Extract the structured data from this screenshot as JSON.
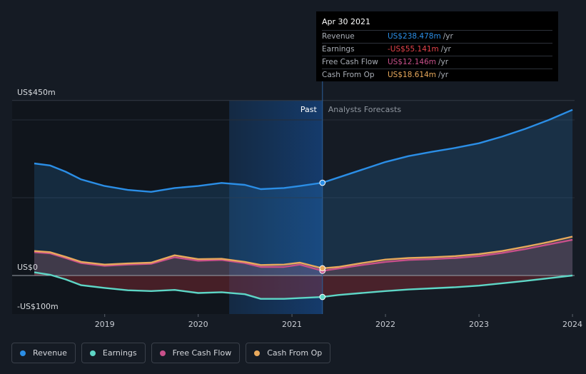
{
  "chart_data": {
    "type": "area",
    "currency_prefix": "US$",
    "y_ticks": [
      {
        "label": "US$450m",
        "value": 450
      },
      {
        "label": "US$0",
        "value": 0
      },
      {
        "label": "-US$100m",
        "value": -100
      }
    ],
    "x_ticks": [
      "2019",
      "2020",
      "2021",
      "2022",
      "2023",
      "2024"
    ],
    "past_label": "Past",
    "forecast_label": "Analysts Forecasts",
    "divider_date": "2021-04-30",
    "highlight_start": "2020-05-01",
    "series": [
      {
        "name": "Revenue",
        "color": "#2b8ee6",
        "points": [
          [
            "2018-04-01",
            288
          ],
          [
            "2018-06-01",
            283
          ],
          [
            "2018-08-01",
            267
          ],
          [
            "2018-10-01",
            247
          ],
          [
            "2019-01-01",
            230
          ],
          [
            "2019-04-01",
            220
          ],
          [
            "2019-07-01",
            215
          ],
          [
            "2019-10-01",
            225
          ],
          [
            "2020-01-01",
            230
          ],
          [
            "2020-04-01",
            238
          ],
          [
            "2020-07-01",
            233
          ],
          [
            "2020-09-01",
            222
          ],
          [
            "2020-12-01",
            225
          ],
          [
            "2021-02-01",
            230
          ],
          [
            "2021-04-30",
            238.478
          ],
          [
            "2021-07-01",
            252
          ],
          [
            "2021-10-01",
            272
          ],
          [
            "2022-01-01",
            292
          ],
          [
            "2022-04-01",
            307
          ],
          [
            "2022-07-01",
            318
          ],
          [
            "2022-10-01",
            328
          ],
          [
            "2023-01-01",
            340
          ],
          [
            "2023-04-01",
            357
          ],
          [
            "2023-07-01",
            377
          ],
          [
            "2023-10-01",
            400
          ],
          [
            "2024-01-01",
            426
          ]
        ]
      },
      {
        "name": "Earnings",
        "color": "#5ed6c6",
        "points": [
          [
            "2018-04-01",
            8
          ],
          [
            "2018-06-01",
            2
          ],
          [
            "2018-08-01",
            -10
          ],
          [
            "2018-10-01",
            -25
          ],
          [
            "2019-01-01",
            -32
          ],
          [
            "2019-04-01",
            -38
          ],
          [
            "2019-07-01",
            -40
          ],
          [
            "2019-10-01",
            -37
          ],
          [
            "2020-01-01",
            -45
          ],
          [
            "2020-04-01",
            -43
          ],
          [
            "2020-07-01",
            -48
          ],
          [
            "2020-09-01",
            -60
          ],
          [
            "2020-12-01",
            -60
          ],
          [
            "2021-02-01",
            -58
          ],
          [
            "2021-04-30",
            -55.141
          ],
          [
            "2021-07-01",
            -50
          ],
          [
            "2021-10-01",
            -45
          ],
          [
            "2022-01-01",
            -40
          ],
          [
            "2022-04-01",
            -36
          ],
          [
            "2022-07-01",
            -33
          ],
          [
            "2022-10-01",
            -30
          ],
          [
            "2023-01-01",
            -26
          ],
          [
            "2023-04-01",
            -20
          ],
          [
            "2023-07-01",
            -14
          ],
          [
            "2023-10-01",
            -7
          ],
          [
            "2024-01-01",
            0
          ]
        ]
      },
      {
        "name": "Free Cash Flow",
        "color": "#c8508a",
        "points": [
          [
            "2018-04-01",
            60
          ],
          [
            "2018-06-01",
            57
          ],
          [
            "2018-08-01",
            45
          ],
          [
            "2018-10-01",
            32
          ],
          [
            "2019-01-01",
            25
          ],
          [
            "2019-04-01",
            28
          ],
          [
            "2019-07-01",
            30
          ],
          [
            "2019-10-01",
            47
          ],
          [
            "2020-01-01",
            38
          ],
          [
            "2020-04-01",
            40
          ],
          [
            "2020-07-01",
            32
          ],
          [
            "2020-09-01",
            22
          ],
          [
            "2020-12-01",
            22
          ],
          [
            "2021-02-01",
            28
          ],
          [
            "2021-04-30",
            12.146
          ],
          [
            "2021-07-01",
            18
          ],
          [
            "2021-10-01",
            27
          ],
          [
            "2022-01-01",
            35
          ],
          [
            "2022-04-01",
            40
          ],
          [
            "2022-07-01",
            42
          ],
          [
            "2022-10-01",
            45
          ],
          [
            "2023-01-01",
            50
          ],
          [
            "2023-04-01",
            58
          ],
          [
            "2023-07-01",
            68
          ],
          [
            "2023-10-01",
            80
          ],
          [
            "2024-01-01",
            92
          ]
        ]
      },
      {
        "name": "Cash From Op",
        "color": "#e8a95c",
        "points": [
          [
            "2018-04-01",
            63
          ],
          [
            "2018-06-01",
            60
          ],
          [
            "2018-08-01",
            48
          ],
          [
            "2018-10-01",
            35
          ],
          [
            "2019-01-01",
            28
          ],
          [
            "2019-04-01",
            31
          ],
          [
            "2019-07-01",
            33
          ],
          [
            "2019-10-01",
            52
          ],
          [
            "2020-01-01",
            42
          ],
          [
            "2020-04-01",
            43
          ],
          [
            "2020-07-01",
            35
          ],
          [
            "2020-09-01",
            27
          ],
          [
            "2020-12-01",
            28
          ],
          [
            "2021-02-01",
            33
          ],
          [
            "2021-04-30",
            18.614
          ],
          [
            "2021-07-01",
            22
          ],
          [
            "2021-10-01",
            32
          ],
          [
            "2022-01-01",
            41
          ],
          [
            "2022-04-01",
            45
          ],
          [
            "2022-07-01",
            47
          ],
          [
            "2022-10-01",
            50
          ],
          [
            "2023-01-01",
            55
          ],
          [
            "2023-04-01",
            63
          ],
          [
            "2023-07-01",
            74
          ],
          [
            "2023-10-01",
            86
          ],
          [
            "2024-01-01",
            100
          ]
        ]
      }
    ]
  },
  "tooltip": {
    "date": "Apr 30 2021",
    "rows": [
      {
        "label": "Revenue",
        "value": "US$238.478m",
        "unit": "/yr",
        "color": "#2b8ee6"
      },
      {
        "label": "Earnings",
        "value": "-US$55.141m",
        "unit": "/yr",
        "color": "#e5434b"
      },
      {
        "label": "Free Cash Flow",
        "value": "US$12.146m",
        "unit": "/yr",
        "color": "#c8508a"
      },
      {
        "label": "Cash From Op",
        "value": "US$18.614m",
        "unit": "/yr",
        "color": "#e8a95c"
      }
    ]
  },
  "legend": [
    {
      "label": "Revenue",
      "color": "#2b8ee6"
    },
    {
      "label": "Earnings",
      "color": "#5ed6c6"
    },
    {
      "label": "Free Cash Flow",
      "color": "#c8508a"
    },
    {
      "label": "Cash From Op",
      "color": "#e8a95c"
    }
  ]
}
